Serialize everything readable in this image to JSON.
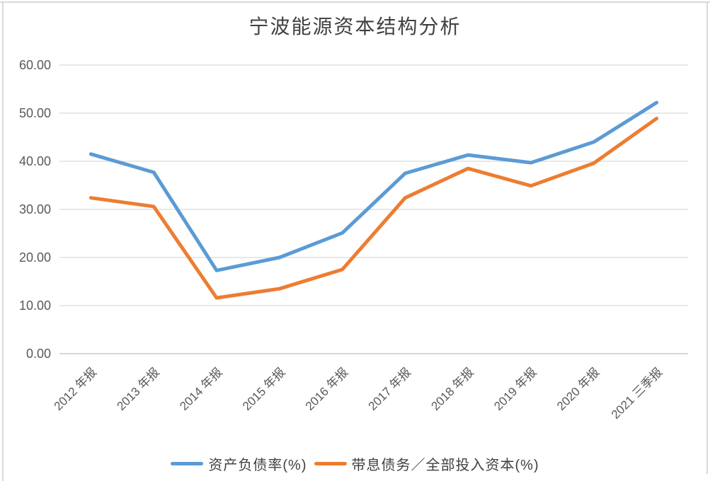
{
  "page": {
    "background": "#ffffff",
    "frame_border_color": "#d9d9d9"
  },
  "chart_data": {
    "type": "line",
    "title": "宁波能源资本结构分析",
    "categories": [
      "2012 年报",
      "2013 年报",
      "2014 年报",
      "2015 年报",
      "2016 年报",
      "2017 年报",
      "2018 年报",
      "2019 年报",
      "2020 年报",
      "2021 三季报"
    ],
    "series": [
      {
        "name": "资产负债率(%)",
        "color": "#5B9BD5",
        "values": [
          41.5,
          37.7,
          17.3,
          20.0,
          25.1,
          37.5,
          41.3,
          39.7,
          44.0,
          52.2
        ]
      },
      {
        "name": "带息债务／全部投入资本(%)",
        "color": "#ED7D31",
        "values": [
          32.4,
          30.6,
          11.6,
          13.5,
          17.5,
          32.4,
          38.5,
          34.9,
          39.6,
          48.9
        ]
      }
    ],
    "y_axis": {
      "min": 0,
      "max": 60,
      "step": 10,
      "tick_labels": [
        "0.00",
        "10.00",
        "20.00",
        "30.00",
        "40.00",
        "50.00",
        "60.00"
      ]
    },
    "xlabel": "",
    "ylabel": "",
    "grid": true,
    "legend_position": "bottom"
  },
  "colors": {
    "gridline": "#d9d9d9",
    "axis_line": "#bfbfbf",
    "tick_text": "#595959",
    "title_text": "#404040",
    "legend_text": "#404040"
  }
}
